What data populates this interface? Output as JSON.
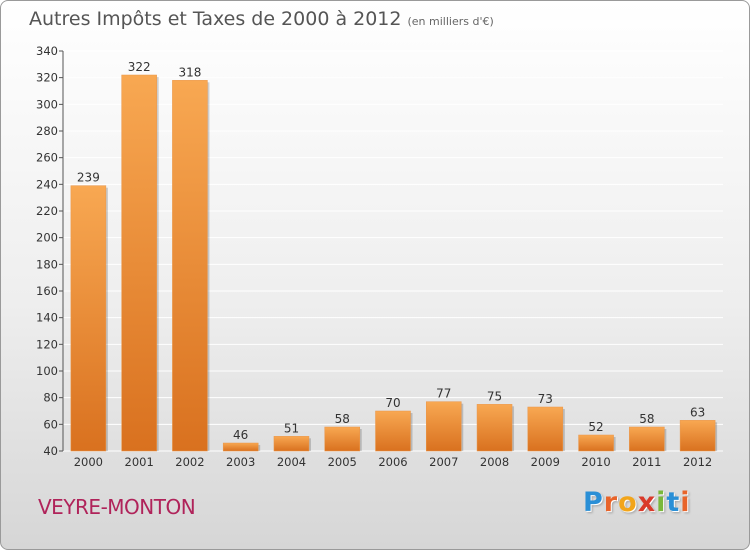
{
  "title": "Autres Impôts et Taxes de 2000 à 2012",
  "subtitle": "(en milliers d'€)",
  "commune": "VEYRE-MONTON",
  "logo": {
    "letters": [
      "P",
      "r",
      "o",
      "x",
      "i",
      "t",
      "i"
    ],
    "colors": [
      "#2a8fd6",
      "#e8642a",
      "#f2a51a",
      "#d93a2a",
      "#7ab83a",
      "#2a8fd6",
      "#e8642a"
    ]
  },
  "colors": {
    "bar_light": "#f8a852",
    "bar_dark": "#d9711f",
    "grid": "#ffffff",
    "axis_text": "#333333",
    "commune": "#b0235a"
  },
  "chart_data": {
    "type": "bar",
    "categories": [
      "2000",
      "2001",
      "2002",
      "2003",
      "2004",
      "2005",
      "2006",
      "2007",
      "2008",
      "2009",
      "2010",
      "2011",
      "2012"
    ],
    "values": [
      239,
      322,
      318,
      46,
      51,
      58,
      70,
      77,
      75,
      73,
      52,
      58,
      63
    ],
    "ylim": [
      40,
      340
    ],
    "yticks": [
      40,
      60,
      80,
      100,
      120,
      140,
      160,
      180,
      200,
      220,
      240,
      260,
      280,
      300,
      320,
      340
    ],
    "grid": true,
    "data_labels": true
  }
}
